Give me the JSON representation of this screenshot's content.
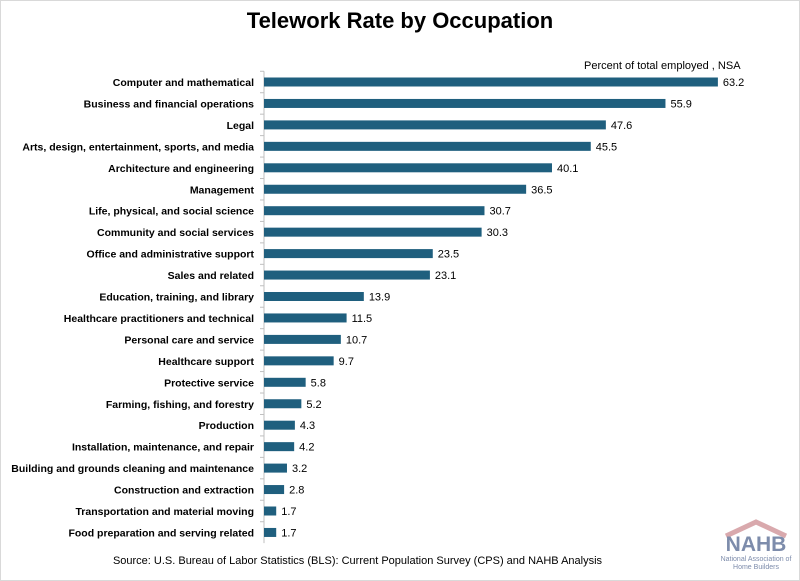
{
  "chart_data": {
    "type": "bar",
    "orientation": "horizontal",
    "title": "Telework Rate by Occupation",
    "unit_label": "Percent of total employed , NSA",
    "xlim": [
      0,
      66
    ],
    "grid": false,
    "legend": "none",
    "bar_color": "#1f5f7e",
    "categories": [
      "Computer and mathematical",
      "Business and financial operations",
      "Legal",
      "Arts, design, entertainment, sports, and media",
      "Architecture and engineering",
      "Management",
      "Life, physical, and social science",
      "Community and social services",
      "Office and administrative support",
      "Sales and related",
      "Education, training, and library",
      "Healthcare practitioners and technical",
      "Personal care and service",
      "Healthcare support",
      "Protective service",
      "Farming, fishing, and forestry",
      "Production",
      "Installation, maintenance, and repair",
      "Building and grounds cleaning and maintenance",
      "Construction and extraction",
      "Transportation and material moving",
      "Food preparation and serving related"
    ],
    "values": [
      63.2,
      55.9,
      47.6,
      45.5,
      40.1,
      36.5,
      30.7,
      30.3,
      23.5,
      23.1,
      13.9,
      11.5,
      10.7,
      9.7,
      5.8,
      5.2,
      4.3,
      4.2,
      3.2,
      2.8,
      1.7,
      1.7
    ],
    "value_labels": [
      "63.2",
      "55.9",
      "47.6",
      "45.5",
      "40.1",
      "36.5",
      "30.7",
      "30.3",
      "23.5",
      "23.1",
      "13.9",
      "11.5",
      "10.7",
      "9.7",
      "5.8",
      "5.2",
      "4.3",
      "4.2",
      "3.2",
      "2.8",
      "1.7",
      "1.7"
    ]
  },
  "source": "Source: U.S. Bureau of Labor Statistics (BLS): Current Population Survey (CPS) and NAHB Analysis",
  "logo": {
    "word": "NAHB",
    "subtitle": "National Association of Home Builders",
    "color": "#7d8cab",
    "roof_color": "#d9a9ad"
  }
}
